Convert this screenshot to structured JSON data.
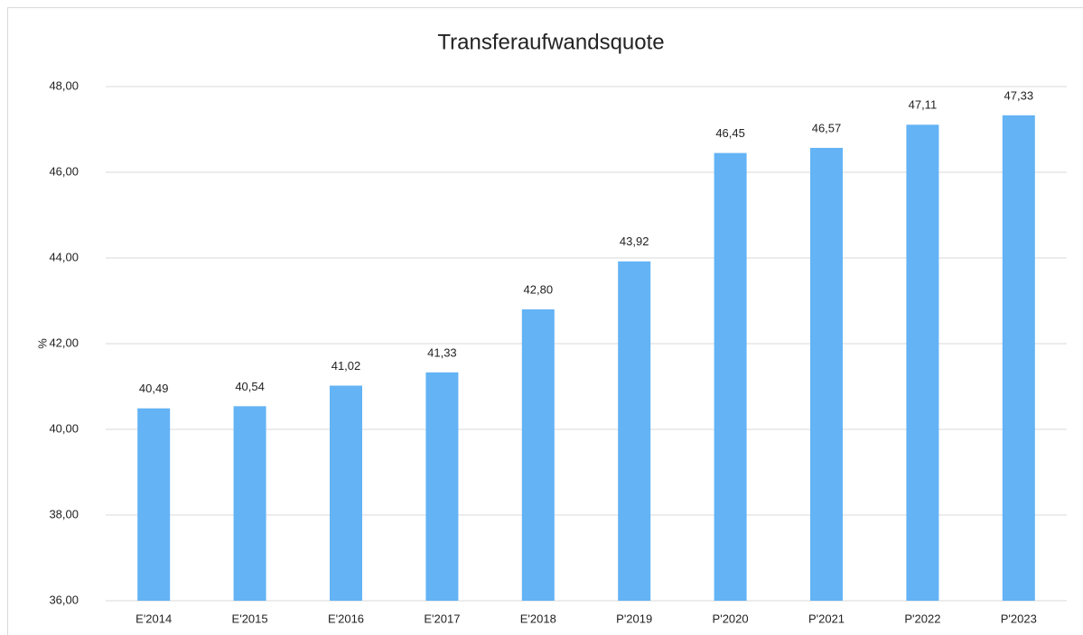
{
  "chart_data": {
    "type": "bar",
    "title": "Transferaufwandsquote",
    "y_label": "%",
    "categories": [
      "E'2014",
      "E'2015",
      "E'2016",
      "E'2017",
      "E'2018",
      "P'2019",
      "P'2020",
      "P'2021",
      "P'2022",
      "P'2023"
    ],
    "values": [
      40.49,
      40.54,
      41.02,
      41.33,
      42.8,
      43.92,
      46.45,
      46.57,
      47.11,
      47.33
    ],
    "value_labels": [
      "40,49",
      "40,54",
      "41,02",
      "41,33",
      "42,80",
      "43,92",
      "46,45",
      "46,57",
      "47,11",
      "47,33"
    ],
    "color": "#63b3f5",
    "ylim": [
      36,
      48
    ],
    "yticks": [
      {
        "value": 36,
        "label": "36,00"
      },
      {
        "value": 38,
        "label": "38,00"
      },
      {
        "value": 40,
        "label": "40,00"
      },
      {
        "value": 42,
        "label": "42,00"
      },
      {
        "value": 44,
        "label": "44,00"
      },
      {
        "value": 46,
        "label": "46,00"
      },
      {
        "value": 48,
        "label": "48,00"
      }
    ],
    "grid": true
  }
}
